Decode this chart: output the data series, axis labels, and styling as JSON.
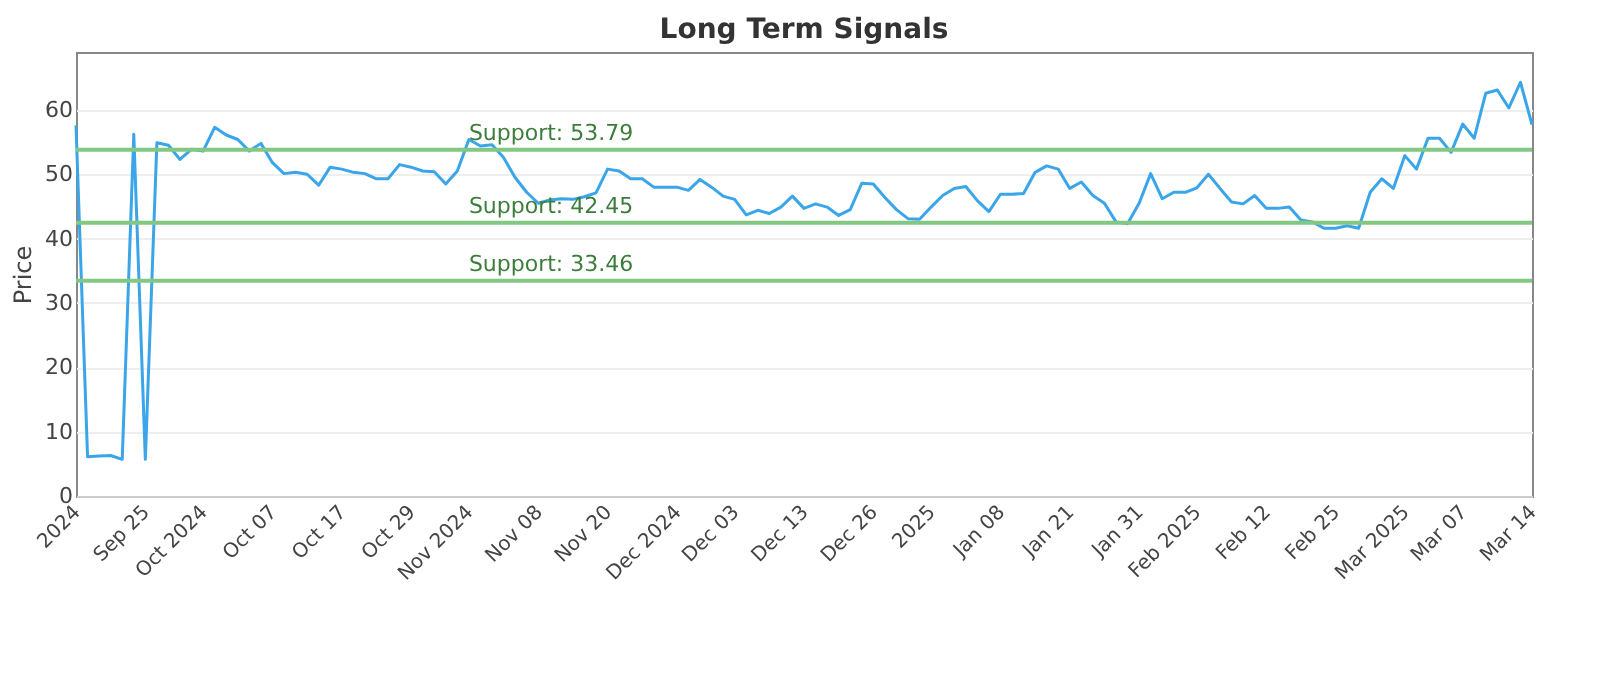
{
  "chart_data": {
    "type": "line",
    "title": "Long Term Signals",
    "ylabel": "Price",
    "categories": [
      "2024",
      null,
      null,
      null,
      null,
      null,
      "Sep 25",
      null,
      null,
      null,
      null,
      "Oct 2024",
      null,
      null,
      null,
      null,
      null,
      "Oct 07",
      null,
      null,
      null,
      null,
      null,
      "Oct 17",
      null,
      null,
      null,
      null,
      null,
      "Oct 29",
      null,
      null,
      null,
      null,
      "Nov 2024",
      null,
      null,
      null,
      null,
      null,
      "Nov 08",
      null,
      null,
      null,
      null,
      null,
      "Nov 20",
      null,
      null,
      null,
      null,
      null,
      "Dec 2024",
      null,
      null,
      null,
      null,
      "Dec 03",
      null,
      null,
      null,
      null,
      null,
      "Dec 13",
      null,
      null,
      null,
      null,
      null,
      "Dec 26",
      null,
      null,
      null,
      null,
      "2025",
      null,
      null,
      null,
      null,
      null,
      "Jan 08",
      null,
      null,
      null,
      null,
      null,
      "Jan 21",
      null,
      null,
      null,
      null,
      null,
      "Jan 31",
      null,
      null,
      null,
      null,
      "Feb 2025",
      null,
      null,
      null,
      null,
      null,
      "Feb 12",
      null,
      null,
      null,
      null,
      null,
      "Feb 25",
      null,
      null,
      null,
      null,
      null,
      "Mar 2025",
      null,
      null,
      null,
      null,
      "Mar 07",
      null,
      null,
      null,
      null,
      null,
      "Mar 14"
    ],
    "series": [
      {
        "color": "#3aa5e8",
        "values": [
          57.6,
          6.1,
          6.2,
          6.3,
          5.7,
          56.2,
          5.7,
          54.9,
          54.5,
          52.3,
          53.9,
          53.6,
          57.3,
          56.1,
          55.4,
          53.6,
          54.8,
          51.8,
          50.1,
          50.3,
          50.0,
          48.3,
          51.1,
          50.8,
          50.3,
          50.1,
          49.3,
          49.3,
          51.5,
          51.1,
          50.5,
          50.4,
          48.5,
          50.5,
          55.4,
          54.4,
          54.6,
          52.6,
          49.5,
          47.2,
          45.5,
          46.0,
          46.2,
          46.1,
          46.5,
          47.1,
          50.8,
          50.5,
          49.3,
          49.3,
          48.0,
          48.0,
          48.0,
          47.5,
          49.2,
          48.0,
          46.6,
          46.1,
          43.7,
          44.4,
          43.9,
          44.9,
          46.6,
          44.7,
          45.4,
          44.9,
          43.6,
          44.5,
          48.6,
          48.5,
          46.4,
          44.5,
          43.1,
          43.0,
          44.9,
          46.7,
          47.8,
          48.1,
          45.9,
          44.2,
          46.9,
          46.9,
          47.0,
          50.3,
          51.3,
          50.8,
          47.8,
          48.8,
          46.7,
          45.5,
          42.6,
          42.3,
          45.5,
          50.1,
          46.2,
          47.2,
          47.2,
          47.9,
          50.0,
          47.8,
          45.7,
          45.4,
          46.7,
          44.7,
          44.7,
          44.9,
          42.9,
          42.6,
          41.6,
          41.6,
          42.0,
          41.6,
          47.2,
          49.3,
          47.8,
          52.9,
          50.8,
          55.6,
          55.6,
          53.4,
          57.8,
          55.6,
          62.6,
          63.1,
          60.3,
          64.3,
          57.7
        ]
      }
    ],
    "ylim": [
      0,
      69
    ],
    "yticks": [
      0,
      10,
      20,
      30,
      40,
      50,
      60
    ],
    "grid": "y",
    "marker": "none",
    "line_style": "solid",
    "ref_lines": [
      {
        "axis": "y",
        "value": 53.79,
        "label": "Support: 53.79",
        "color": "#82c882"
      },
      {
        "axis": "y",
        "value": 42.45,
        "label": "Support: 42.45",
        "color": "#82c882"
      },
      {
        "axis": "y",
        "value": 33.46,
        "label": "Support: 33.46",
        "color": "#82c882"
      }
    ]
  }
}
